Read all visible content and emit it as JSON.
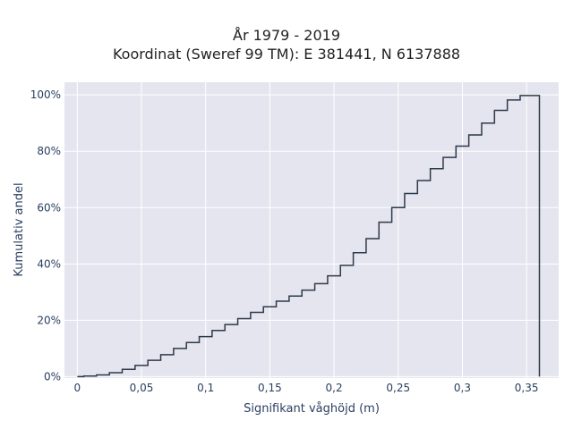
{
  "chart_data": {
    "type": "line",
    "title": "År 1979 - 2019",
    "subtitle": "Koordinat (Sweref 99 TM): E 381441, N 6137888",
    "xlabel": "Signifikant våghöjd (m)",
    "ylabel": "Kumulativ andel",
    "x_ticks": [
      "0",
      "0,05",
      "0,1",
      "0,15",
      "0,2",
      "0,25",
      "0,3",
      "0,35"
    ],
    "x_tick_values": [
      0,
      0.05,
      0.1,
      0.15,
      0.2,
      0.25,
      0.3,
      0.35
    ],
    "y_ticks": [
      "0%",
      "20%",
      "40%",
      "60%",
      "80%",
      "100%"
    ],
    "y_tick_values": [
      0,
      0.2,
      0.4,
      0.6,
      0.8,
      1.0
    ],
    "xlim": [
      -0.01,
      0.375
    ],
    "ylim": [
      -0.005,
      1.045
    ],
    "grid": true,
    "background": "#e5e5ef",
    "line_color": "#2d3a4a",
    "series": [
      {
        "step": "post",
        "x": [
          0,
          0.005,
          0.015,
          0.025,
          0.035,
          0.045,
          0.055,
          0.065,
          0.075,
          0.085,
          0.095,
          0.105,
          0.115,
          0.125,
          0.135,
          0.145,
          0.155,
          0.165,
          0.175,
          0.185,
          0.195,
          0.205,
          0.215,
          0.225,
          0.235,
          0.245,
          0.255,
          0.265,
          0.275,
          0.285,
          0.295,
          0.305,
          0.315,
          0.325,
          0.335,
          0.345,
          0.36
        ],
        "y": [
          0,
          0.002,
          0.006,
          0.014,
          0.026,
          0.04,
          0.058,
          0.078,
          0.1,
          0.121,
          0.142,
          0.164,
          0.185,
          0.206,
          0.228,
          0.248,
          0.268,
          0.286,
          0.307,
          0.33,
          0.358,
          0.395,
          0.44,
          0.49,
          0.548,
          0.6,
          0.65,
          0.696,
          0.738,
          0.778,
          0.818,
          0.858,
          0.9,
          0.945,
          0.982,
          0.998,
          1.0
        ]
      }
    ]
  }
}
